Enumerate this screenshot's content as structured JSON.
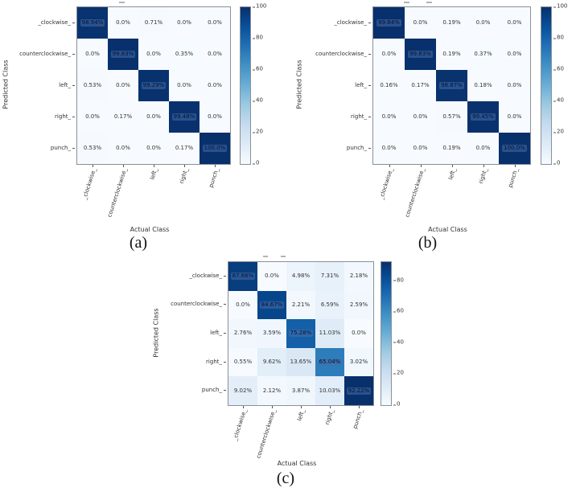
{
  "colors": {
    "blues_stops": [
      "#f7fbff",
      "#deebf7",
      "#c6dbef",
      "#9ecae1",
      "#6baed6",
      "#4292c6",
      "#2171b5",
      "#08519c",
      "#08306b"
    ],
    "diagonal_highlight": "rgba(70,110,170,0.55)",
    "dark_max": "#08306b",
    "light_min": "#f7fbff"
  },
  "chart_data": [
    {
      "id": "a",
      "type": "heatmap",
      "caption": "(a)",
      "xlabel": "Actual Class",
      "ylabel": "Predicted Class",
      "x_categories": [
        "_clockwise_",
        "counterclockwise_",
        "left_",
        "right_",
        "punch_"
      ],
      "y_categories": [
        "_clockwise_",
        "counterclockwise_",
        "left_",
        "right_",
        "punch_"
      ],
      "values_percent": [
        [
          98.94,
          0.0,
          0.71,
          0.0,
          0.0
        ],
        [
          0.0,
          99.83,
          0.0,
          0.35,
          0.0
        ],
        [
          0.53,
          0.0,
          99.29,
          0.0,
          0.0
        ],
        [
          0.0,
          0.17,
          0.0,
          99.48,
          0.0
        ],
        [
          0.53,
          0.0,
          0.0,
          0.17,
          100.0
        ]
      ],
      "colormap": "Blues",
      "vmin": 0,
      "vmax": 100,
      "colorbar_ticks": [
        100,
        80,
        60,
        40,
        20,
        0
      ]
    },
    {
      "id": "b",
      "type": "heatmap",
      "caption": "(b)",
      "xlabel": "Actual Class",
      "ylabel": "Predicted Class",
      "x_categories": [
        "_clockwise_",
        "counterclockwise_",
        "left_",
        "right_",
        "punch_"
      ],
      "y_categories": [
        "_clockwise_",
        "counterclockwise_",
        "left_",
        "right_",
        "punch_"
      ],
      "values_percent": [
        [
          99.84,
          0.0,
          0.19,
          0.0,
          0.0
        ],
        [
          0.0,
          99.83,
          0.19,
          0.37,
          0.0
        ],
        [
          0.16,
          0.17,
          98.87,
          0.18,
          0.0
        ],
        [
          0.0,
          0.0,
          0.57,
          99.45,
          0.0
        ],
        [
          0.0,
          0.0,
          0.19,
          0.0,
          100.0
        ]
      ],
      "colormap": "Blues",
      "vmin": 0,
      "vmax": 100,
      "colorbar_ticks": [
        100,
        80,
        60,
        40,
        20,
        0
      ]
    },
    {
      "id": "c",
      "type": "heatmap",
      "caption": "(c)",
      "xlabel": "Actual Class",
      "ylabel": "Predicted Class",
      "x_categories": [
        "_clockwise_",
        "counterclockwise_",
        "left_",
        "right_",
        "punch_"
      ],
      "y_categories": [
        "_clockwise_",
        "counterclockwise_",
        "left_",
        "right_",
        "punch_"
      ],
      "values_percent": [
        [
          87.66,
          0.0,
          4.98,
          7.31,
          2.18
        ],
        [
          0.0,
          84.67,
          2.21,
          6.59,
          2.59
        ],
        [
          2.76,
          3.59,
          75.28,
          11.03,
          0.0
        ],
        [
          0.55,
          9.62,
          13.65,
          65.04,
          3.02
        ],
        [
          9.02,
          2.12,
          3.87,
          10.03,
          92.22
        ]
      ],
      "colormap": "Blues",
      "vmin": 0,
      "vmax": 92.22,
      "colorbar_ticks": [
        80,
        60,
        40,
        20,
        0
      ]
    }
  ]
}
